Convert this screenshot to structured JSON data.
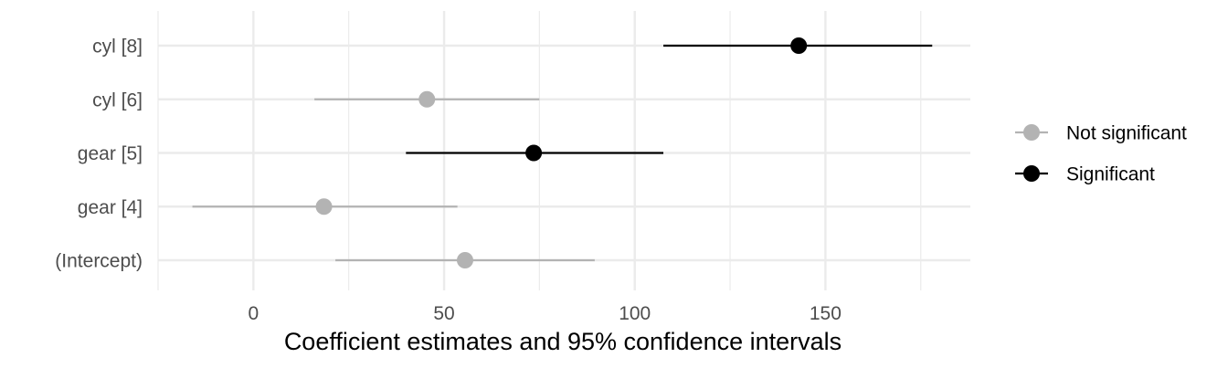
{
  "chart_data": {
    "type": "scatter",
    "xlabel": "Coefficient estimates and 95% confidence intervals",
    "ylabel": "",
    "xlim": [
      -25,
      188
    ],
    "x_ticks": [
      "0",
      "50",
      "100",
      "150"
    ],
    "x_tick_values": [
      0,
      50,
      100,
      150
    ],
    "x_minor_ticks": [
      -25,
      25,
      75,
      125,
      175
    ],
    "grid": true,
    "legend_position": "right",
    "categories": [
      "cyl [8]",
      "cyl [6]",
      "gear [5]",
      "gear [4]",
      "(Intercept)"
    ],
    "points": [
      {
        "term": "cyl [8]",
        "estimate": 143,
        "conf_low": 107.5,
        "conf_high": 178,
        "group": "Significant"
      },
      {
        "term": "cyl [6]",
        "estimate": 45.5,
        "conf_low": 16,
        "conf_high": 75,
        "group": "Not significant"
      },
      {
        "term": "gear [5]",
        "estimate": 73.5,
        "conf_low": 40,
        "conf_high": 107.5,
        "group": "Significant"
      },
      {
        "term": "gear [4]",
        "estimate": 18.5,
        "conf_low": -16,
        "conf_high": 53.5,
        "group": "Not significant"
      },
      {
        "term": "(Intercept)",
        "estimate": 55.5,
        "conf_low": 21.5,
        "conf_high": 89.5,
        "group": "Not significant"
      }
    ],
    "legend": [
      {
        "name": "Not significant",
        "color": "#b3b3b3"
      },
      {
        "name": "Significant",
        "color": "#000000"
      }
    ],
    "colors": {
      "grid": "#ebebeb",
      "not_significant": "#b3b3b3",
      "significant": "#000000"
    }
  }
}
